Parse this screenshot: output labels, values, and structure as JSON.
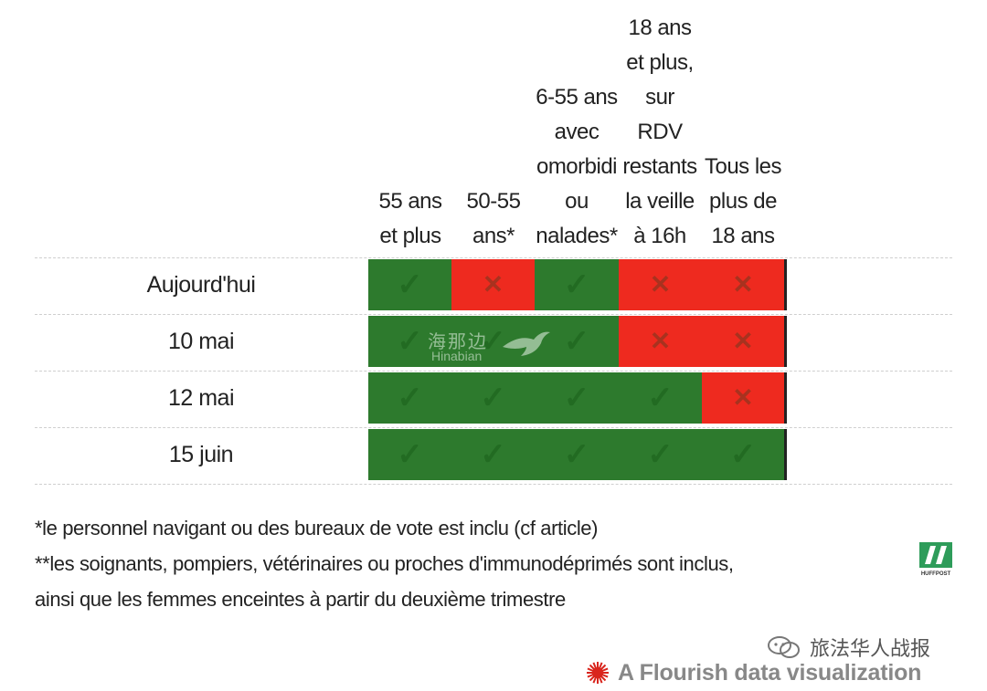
{
  "chart_data": {
    "type": "table",
    "columns": [
      "55 ans\net plus",
      "50-55\nans*",
      "6-55 ans\navec\nomorbidi\nou\nnalades*",
      "18 ans\net plus,\nsur\nRDV\nrestants\nla veille\nà 16h",
      "Tous les\nplus de\n18 ans"
    ],
    "rows": [
      {
        "label": "Aujourd'hui",
        "values": [
          true,
          false,
          true,
          false,
          false
        ]
      },
      {
        "label": "10 mai",
        "values": [
          true,
          true,
          true,
          false,
          false
        ]
      },
      {
        "label": "12 mai",
        "values": [
          true,
          true,
          true,
          true,
          false
        ]
      },
      {
        "label": "15 juin",
        "values": [
          true,
          true,
          true,
          true,
          true
        ]
      }
    ],
    "symbols": {
      "yes": "✓",
      "no": "✕"
    },
    "colors": {
      "yes": "#2d7a2d",
      "no": "#ee2a1f"
    }
  },
  "footnotes": [
    "*le personnel navigant ou des bureaux de vote est inclu (cf article)",
    "**les soignants, pompiers, vétérinaires ou proches d'immunodéprimés sont inclus,",
    "ainsi que les femmes enceintes à partir du deuxième trimestre"
  ],
  "watermark": {
    "cn": "海那边",
    "en": "Hinabian"
  },
  "logo": {
    "name": "huffpost-logo",
    "text": "HUFFPOST",
    "color": "#2e9c5a"
  },
  "wechat": {
    "icon": "wechat-icon",
    "text": "旅法华人战报"
  },
  "flourish": {
    "icon": "flourish-icon",
    "text": "A Flourish data visualization",
    "color": "#d9251d"
  }
}
